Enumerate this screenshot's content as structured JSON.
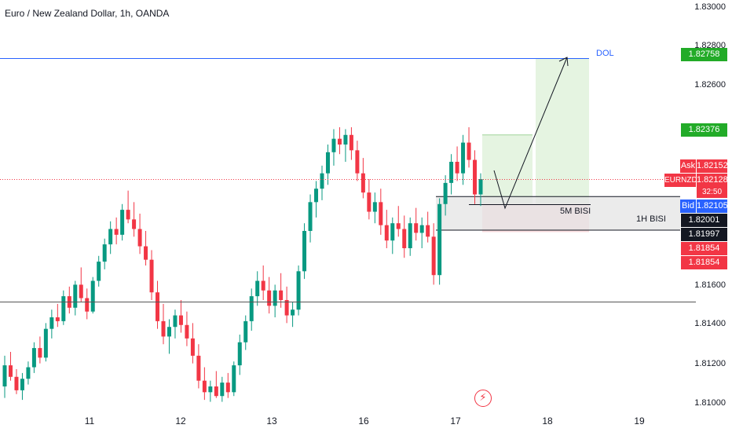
{
  "header": {
    "symbol_title": "Euro / New Zealand Dollar, 1h, OANDA"
  },
  "price_axis": {
    "labels": [
      "1.83000",
      "1.82800",
      "1.82600",
      "1.81600",
      "1.81400",
      "1.81200",
      "1.81000"
    ]
  },
  "price_badges": {
    "dol": "1.82758",
    "target_box_top": "1.82376",
    "ask_tag": "Ask",
    "ask": "1.82152",
    "symbol_tag": "EURNZD",
    "last": "1.82128",
    "countdown": "32:50",
    "bid_tag": "Bid",
    "bid": "1.82105",
    "zone_top": "1.82001",
    "zone_bottom": "1.81997",
    "stop_a": "1.81854",
    "stop_b": "1.81854"
  },
  "time_axis": {
    "labels": [
      "11",
      "12",
      "13",
      "16",
      "17",
      "18",
      "19"
    ]
  },
  "annotations": {
    "dol_label": "DOL",
    "zone_5m": "5M BISI",
    "zone_1h": "1H BISI"
  },
  "colors": {
    "up": "#089981",
    "down": "#f23645",
    "dol_line": "#2962ff",
    "target_fill": "#e5f4e1",
    "stop_fill": "#f8d8da",
    "zone_fill": "#e4e4e4",
    "badge_green": "#22ab28",
    "badge_red": "#f23645",
    "badge_blue": "#2962ff",
    "badge_dark": "#131722"
  },
  "chart_data": {
    "type": "candlestick",
    "symbol": "EURNZD",
    "timeframe": "1h",
    "y_range": [
      1.8096,
      1.8303
    ],
    "x_ticks": [
      "11",
      "12",
      "13",
      "16",
      "17",
      "18",
      "19"
    ],
    "horizontal_levels": {
      "dol": 1.82758,
      "support_line": 1.8149,
      "bid_dotted": 1.82128
    },
    "zones": [
      {
        "name": "1H BISI",
        "top": 1.82039,
        "bottom": 1.81864
      },
      {
        "name": "5M BISI",
        "top": 1.82039,
        "bottom": 1.81997
      }
    ],
    "position": {
      "entry": 1.82001,
      "target": 1.82758,
      "stop": 1.81854
    },
    "candles": [
      [
        1.8105,
        1.8121,
        1.8099,
        1.8116
      ],
      [
        1.8116,
        1.8123,
        1.8108,
        1.811
      ],
      [
        1.811,
        1.8114,
        1.8101,
        1.8103
      ],
      [
        1.8103,
        1.8112,
        1.8098,
        1.8109
      ],
      [
        1.8109,
        1.8118,
        1.8106,
        1.8115
      ],
      [
        1.8115,
        1.8128,
        1.8112,
        1.8125
      ],
      [
        1.8125,
        1.8131,
        1.8117,
        1.812
      ],
      [
        1.812,
        1.8138,
        1.8118,
        1.8135
      ],
      [
        1.8135,
        1.8145,
        1.813,
        1.8141
      ],
      [
        1.8141,
        1.8148,
        1.8136,
        1.8139
      ],
      [
        1.8139,
        1.8155,
        1.8137,
        1.8152
      ],
      [
        1.8152,
        1.8157,
        1.8143,
        1.8146
      ],
      [
        1.8146,
        1.816,
        1.8142,
        1.8158
      ],
      [
        1.8158,
        1.8167,
        1.8149,
        1.8151
      ],
      [
        1.8151,
        1.8156,
        1.814,
        1.8144
      ],
      [
        1.8144,
        1.8162,
        1.8143,
        1.816
      ],
      [
        1.816,
        1.8173,
        1.8157,
        1.817
      ],
      [
        1.817,
        1.8182,
        1.8166,
        1.8179
      ],
      [
        1.8179,
        1.8191,
        1.8174,
        1.8187
      ],
      [
        1.8187,
        1.8193,
        1.8179,
        1.8184
      ],
      [
        1.8184,
        1.82,
        1.8181,
        1.8197
      ],
      [
        1.8197,
        1.8207,
        1.819,
        1.8192
      ],
      [
        1.8192,
        1.8201,
        1.8183,
        1.8187
      ],
      [
        1.8187,
        1.8195,
        1.8174,
        1.8178
      ],
      [
        1.8178,
        1.8186,
        1.8168,
        1.8171
      ],
      [
        1.8171,
        1.8176,
        1.815,
        1.8154
      ],
      [
        1.8154,
        1.816,
        1.8135,
        1.8139
      ],
      [
        1.8139,
        1.8148,
        1.8127,
        1.8131
      ],
      [
        1.8131,
        1.814,
        1.8122,
        1.8136
      ],
      [
        1.8136,
        1.8145,
        1.813,
        1.8142
      ],
      [
        1.8142,
        1.815,
        1.8133,
        1.8137
      ],
      [
        1.8137,
        1.8144,
        1.8126,
        1.813
      ],
      [
        1.813,
        1.8138,
        1.8117,
        1.8121
      ],
      [
        1.8121,
        1.8127,
        1.8104,
        1.8108
      ],
      [
        1.8108,
        1.8115,
        1.8098,
        1.8102
      ],
      [
        1.8102,
        1.8108,
        1.8097,
        1.8105
      ],
      [
        1.8105,
        1.8113,
        1.8099,
        1.81
      ],
      [
        1.81,
        1.811,
        1.8097,
        1.8107
      ],
      [
        1.8107,
        1.8112,
        1.8099,
        1.8102
      ],
      [
        1.8102,
        1.8118,
        1.81,
        1.8116
      ],
      [
        1.8116,
        1.8132,
        1.8111,
        1.8128
      ],
      [
        1.8128,
        1.8142,
        1.8124,
        1.8139
      ],
      [
        1.8139,
        1.8156,
        1.8134,
        1.8152
      ],
      [
        1.8152,
        1.8165,
        1.8147,
        1.816
      ],
      [
        1.816,
        1.8168,
        1.815,
        1.8155
      ],
      [
        1.8155,
        1.8162,
        1.8143,
        1.8147
      ],
      [
        1.8147,
        1.8158,
        1.8141,
        1.8155
      ],
      [
        1.8155,
        1.8164,
        1.8146,
        1.815
      ],
      [
        1.815,
        1.8157,
        1.8138,
        1.8142
      ],
      [
        1.8142,
        1.8149,
        1.8136,
        1.8145
      ],
      [
        1.8145,
        1.8168,
        1.8142,
        1.8165
      ],
      [
        1.8165,
        1.819,
        1.8161,
        1.8186
      ],
      [
        1.8186,
        1.8205,
        1.818,
        1.8201
      ],
      [
        1.8201,
        1.8212,
        1.8193,
        1.8208
      ],
      [
        1.8208,
        1.822,
        1.8202,
        1.8216
      ],
      [
        1.8216,
        1.8231,
        1.821,
        1.8227
      ],
      [
        1.8227,
        1.8239,
        1.822,
        1.8234
      ],
      [
        1.8234,
        1.824,
        1.8226,
        1.8231
      ],
      [
        1.8231,
        1.8239,
        1.8222,
        1.8236
      ],
      [
        1.8236,
        1.824,
        1.8223,
        1.8228
      ],
      [
        1.8228,
        1.8233,
        1.8212,
        1.8216
      ],
      [
        1.8216,
        1.8224,
        1.8203,
        1.8206
      ],
      [
        1.8206,
        1.8213,
        1.8192,
        1.8196
      ],
      [
        1.8196,
        1.8206,
        1.819,
        1.8201
      ],
      [
        1.8201,
        1.8208,
        1.8184,
        1.8189
      ],
      [
        1.8189,
        1.8197,
        1.8177,
        1.8181
      ],
      [
        1.8181,
        1.8193,
        1.8174,
        1.819
      ],
      [
        1.819,
        1.8199,
        1.8183,
        1.8187
      ],
      [
        1.8187,
        1.8194,
        1.8172,
        1.8177
      ],
      [
        1.8177,
        1.8193,
        1.8173,
        1.819
      ],
      [
        1.819,
        1.8198,
        1.8181,
        1.8185
      ],
      [
        1.8185,
        1.8193,
        1.8177,
        1.8189
      ],
      [
        1.8189,
        1.8196,
        1.818,
        1.8183
      ],
      [
        1.8183,
        1.819,
        1.8158,
        1.8163
      ],
      [
        1.8163,
        1.8203,
        1.8158,
        1.82
      ],
      [
        1.82,
        1.8215,
        1.8194,
        1.8211
      ],
      [
        1.8211,
        1.8226,
        1.8205,
        1.8222
      ],
      [
        1.8222,
        1.823,
        1.8212,
        1.8216
      ],
      [
        1.8216,
        1.8236,
        1.821,
        1.8232
      ],
      [
        1.8232,
        1.824,
        1.8219,
        1.8223
      ],
      [
        1.8223,
        1.8228,
        1.82,
        1.8205
      ],
      [
        1.8205,
        1.8216,
        1.8199,
        1.8213
      ]
    ]
  }
}
